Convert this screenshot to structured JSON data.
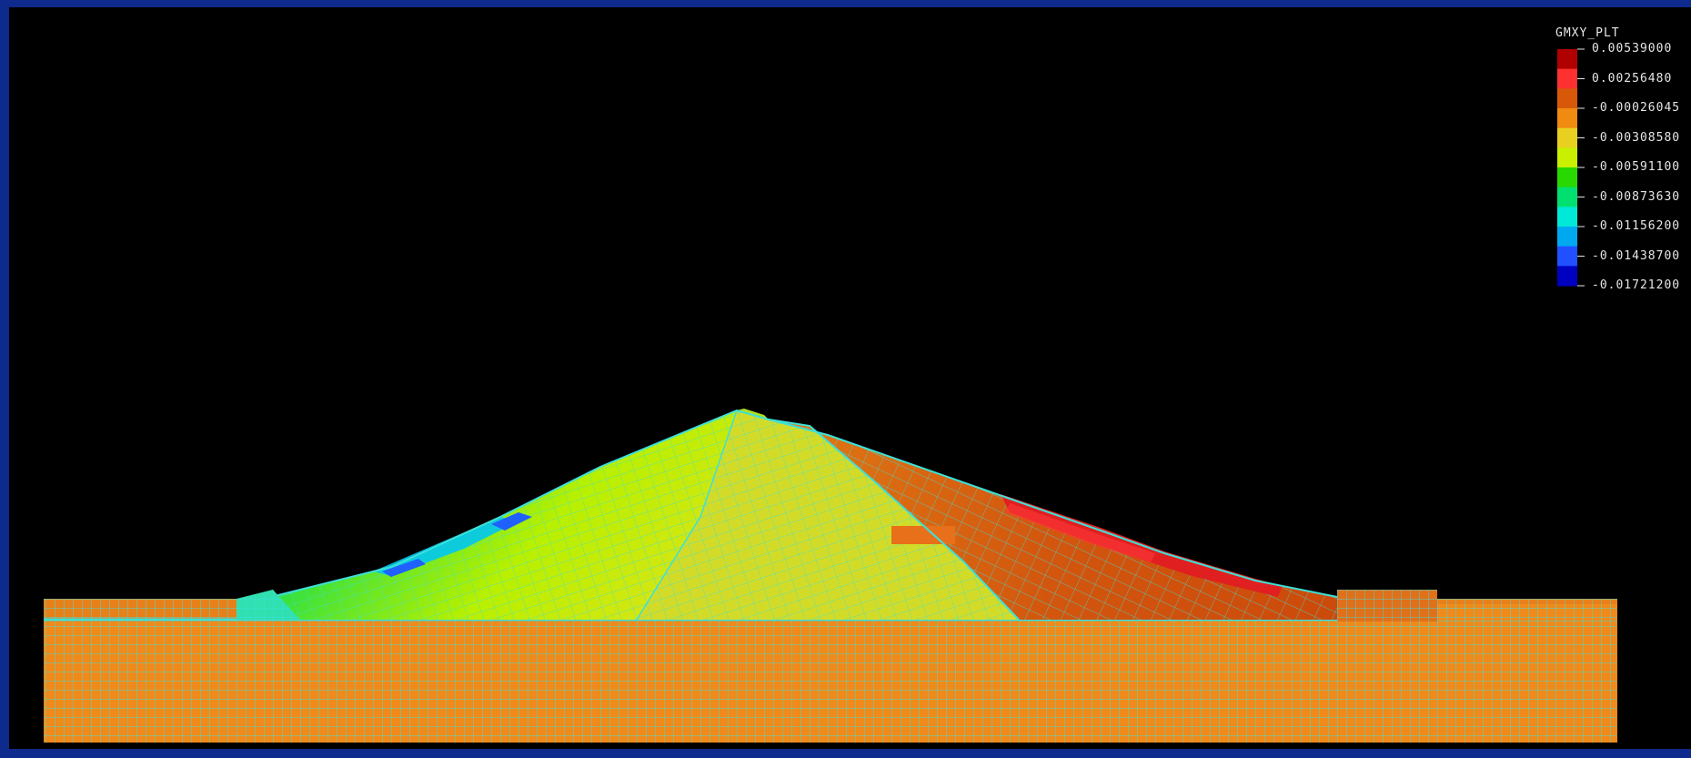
{
  "legend": {
    "title": "GMXY_PLT",
    "labels": [
      "0.00539000",
      "0.00256480",
      "-0.00026045",
      "-0.00308580",
      "-0.00591100",
      "-0.00873630",
      "-0.01156200",
      "-0.01438700",
      "-0.01721200"
    ],
    "colors": [
      "#b00000",
      "#ff3030",
      "#d8580a",
      "#f08a10",
      "#e8d020",
      "#c8f000",
      "#28d800",
      "#00e070",
      "#00e8d8",
      "#00a8f0",
      "#2050ff",
      "#0000c0"
    ]
  },
  "model_colors": {
    "background": "#000000",
    "mesh_lines": "#3ee0d8",
    "foundation": "#f08a1a",
    "upstream_shell": "#c8e820",
    "core": "#d2dc28",
    "downstream_shell": "#d25a12"
  }
}
